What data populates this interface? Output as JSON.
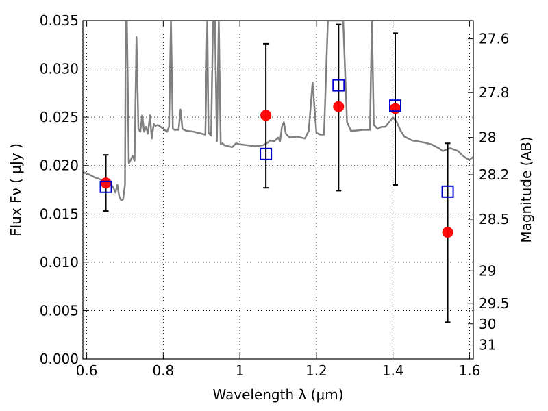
{
  "chart_data": {
    "type": "scatter",
    "xlabel": "Wavelength  λ (μm)",
    "ylabel": "Flux  Fν  ( μJy )",
    "y2label": "Magnitude (AB)",
    "xlim": [
      0.59,
      1.61
    ],
    "ylim": [
      0.0,
      0.035
    ],
    "grid": true,
    "x_ticks": [
      {
        "value": 0.6,
        "label": "0.6"
      },
      {
        "value": 0.8,
        "label": "0.8"
      },
      {
        "value": 1.0,
        "label": "1"
      },
      {
        "value": 1.2,
        "label": "1.2"
      },
      {
        "value": 1.4,
        "label": "1.4"
      },
      {
        "value": 1.6,
        "label": "1.6"
      }
    ],
    "y_ticks": [
      {
        "value": 0.0,
        "label": "0.000"
      },
      {
        "value": 0.005,
        "label": "0.005"
      },
      {
        "value": 0.01,
        "label": "0.010"
      },
      {
        "value": 0.015,
        "label": "0.015"
      },
      {
        "value": 0.02,
        "label": "0.020"
      },
      {
        "value": 0.025,
        "label": "0.025"
      },
      {
        "value": 0.03,
        "label": "0.030"
      },
      {
        "value": 0.035,
        "label": "0.035"
      }
    ],
    "y2_ticks": [
      {
        "value": 27.6,
        "label": "27.6"
      },
      {
        "value": 27.8,
        "label": "27.8"
      },
      {
        "value": 28.0,
        "label": "28"
      },
      {
        "value": 28.2,
        "label": "28.2"
      },
      {
        "value": 28.5,
        "label": "28.5"
      },
      {
        "value": 29.0,
        "label": "29"
      },
      {
        "value": 29.5,
        "label": "29.5"
      },
      {
        "value": 30.0,
        "label": "30"
      },
      {
        "value": 31.0,
        "label": "31"
      }
    ],
    "observed": {
      "color": "#ff0000",
      "points": [
        {
          "x": 0.65,
          "y": 0.0182,
          "ylo": 0.0153,
          "yhi": 0.0211
        },
        {
          "x": 1.068,
          "y": 0.0252,
          "ylo": 0.0177,
          "yhi": 0.0326
        },
        {
          "x": 1.258,
          "y": 0.0261,
          "ylo": 0.0174,
          "yhi": 0.0346
        },
        {
          "x": 1.406,
          "y": 0.0259,
          "ylo": 0.018,
          "yhi": 0.0337
        },
        {
          "x": 1.543,
          "y": 0.0131,
          "ylo": 0.0038,
          "yhi": 0.0223
        }
      ]
    },
    "model_points": {
      "color": "#0000cc",
      "points": [
        {
          "x": 0.65,
          "y": 0.0178
        },
        {
          "x": 1.068,
          "y": 0.0212
        },
        {
          "x": 1.258,
          "y": 0.0283
        },
        {
          "x": 1.406,
          "y": 0.0262
        },
        {
          "x": 1.543,
          "y": 0.0173
        }
      ]
    },
    "spectrum": {
      "color": "#808080",
      "x": [
        0.59,
        0.6,
        0.62,
        0.64,
        0.66,
        0.67,
        0.675,
        0.68,
        0.685,
        0.69,
        0.695,
        0.7,
        0.702,
        0.705,
        0.71,
        0.715,
        0.72,
        0.725,
        0.73,
        0.735,
        0.74,
        0.745,
        0.75,
        0.755,
        0.76,
        0.765,
        0.77,
        0.775,
        0.78,
        0.785,
        0.79,
        0.8,
        0.81,
        0.815,
        0.82,
        0.825,
        0.83,
        0.84,
        0.845,
        0.85,
        0.855,
        0.86,
        0.88,
        0.9,
        0.91,
        0.915,
        0.918,
        0.92,
        0.925,
        0.93,
        0.935,
        0.94,
        0.945,
        0.95,
        0.955,
        0.96,
        0.97,
        0.98,
        0.99,
        1.0,
        1.02,
        1.04,
        1.06,
        1.07,
        1.08,
        1.09,
        1.1,
        1.105,
        1.11,
        1.115,
        1.12,
        1.13,
        1.15,
        1.17,
        1.18,
        1.19,
        1.2,
        1.21,
        1.22,
        1.23,
        1.24,
        1.25,
        1.255,
        1.26,
        1.27,
        1.28,
        1.29,
        1.3,
        1.32,
        1.34,
        1.345,
        1.35,
        1.36,
        1.37,
        1.38,
        1.39,
        1.4,
        1.41,
        1.42,
        1.43,
        1.45,
        1.48,
        1.5,
        1.52,
        1.53,
        1.55,
        1.57,
        1.58,
        1.59,
        1.6,
        1.61
      ],
      "y": [
        0.0193,
        0.0192,
        0.0188,
        0.0185,
        0.0182,
        0.0177,
        0.0172,
        0.018,
        0.0168,
        0.0164,
        0.0165,
        0.018,
        0.035,
        0.035,
        0.0202,
        0.0206,
        0.021,
        0.0205,
        0.0333,
        0.0238,
        0.0235,
        0.0252,
        0.0235,
        0.024,
        0.0233,
        0.0252,
        0.0228,
        0.0243,
        0.0241,
        0.0242,
        0.0241,
        0.0238,
        0.0235,
        0.024,
        0.035,
        0.0238,
        0.0237,
        0.0237,
        0.0258,
        0.0238,
        0.0237,
        0.0236,
        0.0235,
        0.0233,
        0.0232,
        0.035,
        0.0235,
        0.0233,
        0.0231,
        0.035,
        0.035,
        0.0225,
        0.035,
        0.0222,
        0.0223,
        0.0221,
        0.022,
        0.0219,
        0.0223,
        0.0222,
        0.0221,
        0.022,
        0.0221,
        0.0223,
        0.0226,
        0.0225,
        0.0229,
        0.0225,
        0.024,
        0.0245,
        0.0233,
        0.0229,
        0.023,
        0.0228,
        0.0236,
        0.0286,
        0.0234,
        0.0232,
        0.0232,
        0.035,
        0.035,
        0.035,
        0.035,
        0.035,
        0.035,
        0.0245,
        0.0236,
        0.0236,
        0.0237,
        0.0237,
        0.035,
        0.0242,
        0.0238,
        0.024,
        0.024,
        0.0245,
        0.025,
        0.0245,
        0.0236,
        0.023,
        0.0226,
        0.0224,
        0.0222,
        0.0218,
        0.0215,
        0.0218,
        0.0215,
        0.0211,
        0.0208,
        0.0206,
        0.0209
      ]
    }
  }
}
